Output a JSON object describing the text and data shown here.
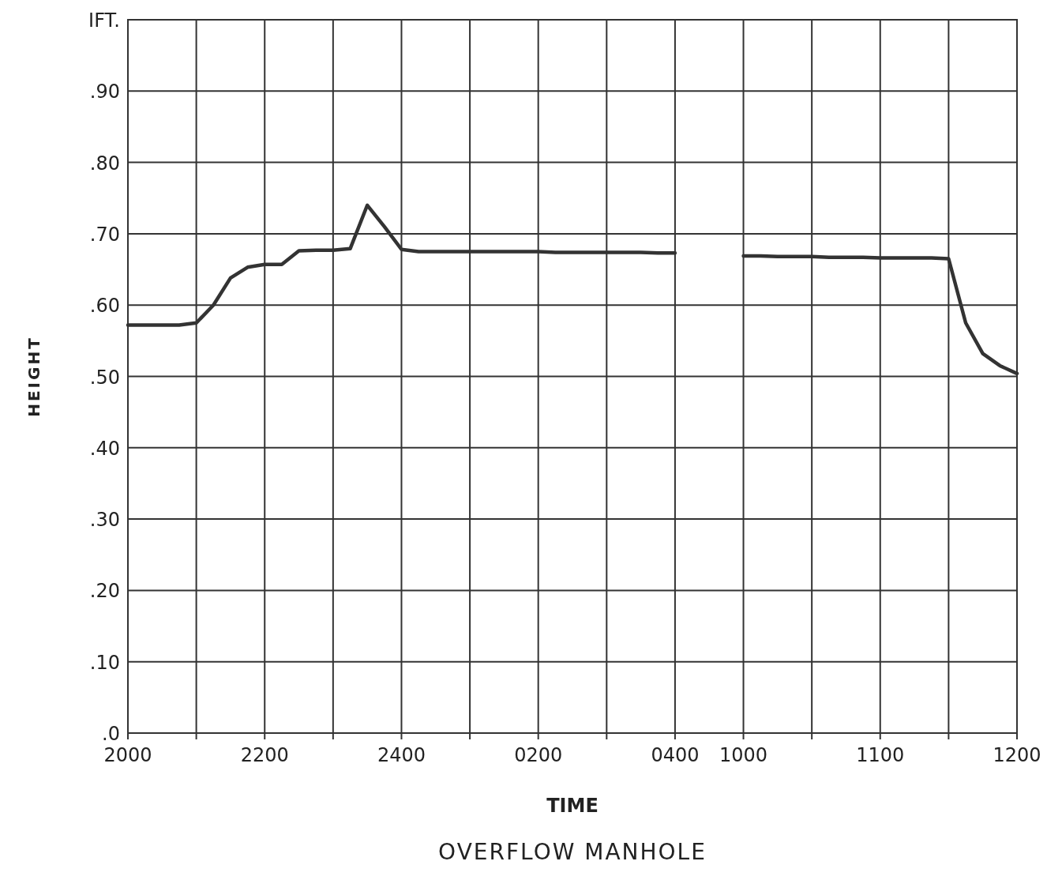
{
  "chart_data": {
    "type": "line",
    "title": "OVERFLOW MANHOLE",
    "xlabel": "TIME",
    "ylabel": "HEIGHT",
    "categories": [
      "2000",
      null,
      null,
      null,
      null,
      null,
      null,
      null,
      "2200",
      null,
      null,
      null,
      null,
      null,
      null,
      null,
      "2400",
      null,
      null,
      null,
      null,
      null,
      null,
      null,
      "0200",
      null,
      null,
      null,
      null,
      null,
      null,
      null,
      "0400",
      null,
      null,
      null,
      "1000",
      null,
      null,
      null,
      null,
      null,
      null,
      null,
      "1100",
      null,
      null,
      null,
      null,
      null,
      null,
      null,
      "1200"
    ],
    "series": [
      {
        "color": "#333333",
        "values": [
          0.572,
          0.572,
          0.572,
          0.572,
          0.575,
          0.6,
          0.638,
          0.653,
          0.657,
          0.657,
          0.676,
          0.677,
          0.677,
          0.679,
          0.74,
          0.71,
          0.678,
          0.675,
          0.675,
          0.675,
          0.675,
          0.675,
          0.675,
          0.675,
          0.675,
          0.674,
          0.674,
          0.674,
          0.674,
          0.674,
          0.674,
          0.673,
          0.673,
          null,
          null,
          null,
          0.669,
          0.669,
          0.668,
          0.668,
          0.668,
          0.667,
          0.667,
          0.667,
          0.666,
          0.666,
          0.666,
          0.666,
          0.665,
          0.575,
          0.532,
          0.515,
          0.504
        ]
      }
    ],
    "ylim": [
      0,
      1
    ],
    "yticks": [
      {
        "value": 0,
        "label": ".0"
      },
      {
        "value": 0.1,
        "label": ".10"
      },
      {
        "value": 0.2,
        "label": ".20"
      },
      {
        "value": 0.3,
        "label": ".30"
      },
      {
        "value": 0.4,
        "label": ".40"
      },
      {
        "value": 0.5,
        "label": ".50"
      },
      {
        "value": 0.6,
        "label": ".60"
      },
      {
        "value": 0.7,
        "label": ".70"
      },
      {
        "value": 0.8,
        "label": ".80"
      },
      {
        "value": 0.9,
        "label": ".90"
      },
      {
        "value": 1,
        "label": "IFT."
      }
    ],
    "grid": true,
    "marker": "none",
    "line_style": "solid"
  }
}
